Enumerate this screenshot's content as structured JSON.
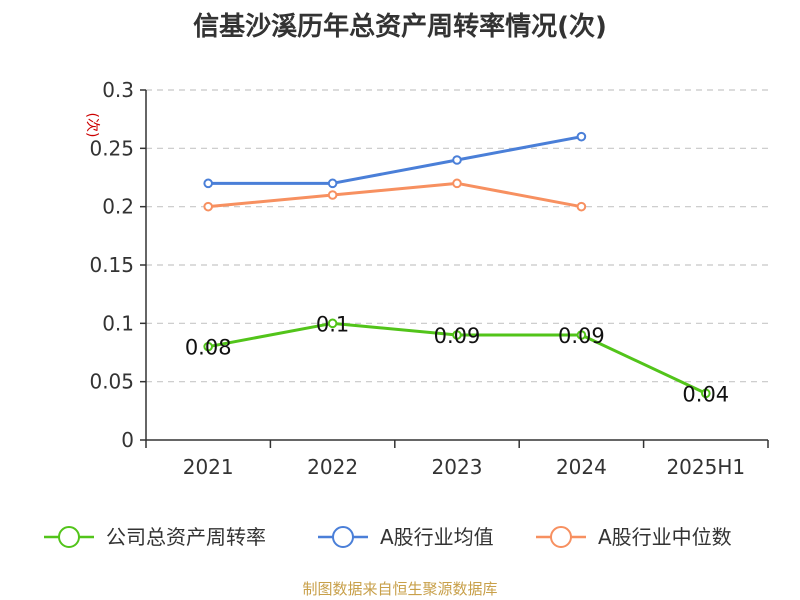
{
  "chart_data": {
    "type": "line",
    "title": "信基沙溪历年总资产周转率情况(次)",
    "ylabel": "(次)",
    "categories": [
      "2021",
      "2022",
      "2023",
      "2024",
      "2025H1"
    ],
    "ylim": [
      0,
      0.3
    ],
    "yticks": [
      "0",
      "0.05",
      "0.1",
      "0.15",
      "0.2",
      "0.25",
      "0.3"
    ],
    "grid": true,
    "legend_position": "bottom",
    "series": [
      {
        "name": "公司总资产周转率",
        "color": "#52c41a",
        "values": [
          0.08,
          0.1,
          0.09,
          0.09,
          0.04
        ],
        "labels": [
          "0.08",
          "0.1",
          "0.09",
          "0.09",
          "0.04"
        ]
      },
      {
        "name": "A股行业均值",
        "color": "#4a7fd8",
        "values": [
          0.22,
          0.22,
          0.24,
          0.26,
          null
        ]
      },
      {
        "name": "A股行业中位数",
        "color": "#f79060",
        "values": [
          0.2,
          0.21,
          0.22,
          0.2,
          null
        ]
      }
    ]
  },
  "footer": "制图数据来自恒生聚源数据库"
}
